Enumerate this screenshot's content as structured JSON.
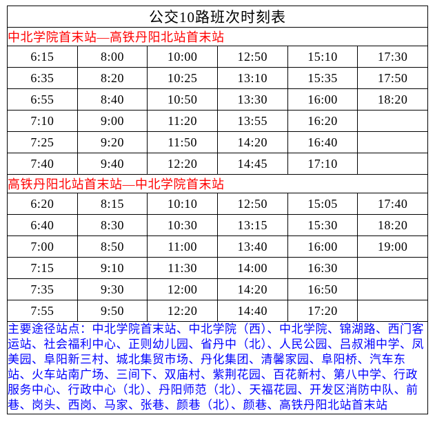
{
  "title": "公交10路班次时刻表",
  "direction1": "中北学院首末站—高铁丹阳北站首末站",
  "times1": [
    [
      "6:15",
      "8:00",
      "10:00",
      "12:50",
      "15:10",
      "17:30"
    ],
    [
      "6:35",
      "8:20",
      "10:25",
      "13:10",
      "15:35",
      "17:50"
    ],
    [
      "6:55",
      "8:40",
      "10:50",
      "13:30",
      "16:00",
      "18:20"
    ],
    [
      "7:10",
      "9:00",
      "11:20",
      "13:55",
      "16:20",
      ""
    ],
    [
      "7:25",
      "9:20",
      "11:50",
      "14:20",
      "16:40",
      ""
    ],
    [
      "7:40",
      "9:40",
      "12:20",
      "14:45",
      "17:10",
      ""
    ]
  ],
  "direction2": "高铁丹阳北站首末站—中北学院首末站",
  "times2": [
    [
      "6:20",
      "8:15",
      "10:10",
      "12:50",
      "15:05",
      "17:40"
    ],
    [
      "6:40",
      "8:30",
      "10:30",
      "13:15",
      "15:30",
      "18:20"
    ],
    [
      "7:00",
      "8:50",
      "11:00",
      "13:40",
      "16:00",
      "19:00"
    ],
    [
      "7:15",
      "9:10",
      "11:30",
      "14:00",
      "16:30",
      ""
    ],
    [
      "7:35",
      "9:30",
      "12:00",
      "14:20",
      "16:50",
      ""
    ],
    [
      "7:55",
      "9:50",
      "12:20",
      "14:40",
      "17:20",
      ""
    ]
  ],
  "stops": "主要途径站点：中北学院首末站、中北学院（西）、中北学院、锦湖路、西门客运站、社会福利中心、正则幼儿园、省丹中（北）、人民公园、吕叔湘中学、凤美园、阜阳新三村、城北集贸市场、丹化集团、清馨家园、阜阳桥、汽车东站、火车站南广场、三间下、双庙村、紫荆花园、百花新村、第八中学、行政服务中心、行政中心（北）、丹阳师范（北）、天福花园、开发区消防中队、前巷、岗头、西岗、马家、张巷、颜巷（北）、颜巷、高铁丹阳北站首末站",
  "colors": {
    "direction": "#ff0000",
    "stops": "#0000ff",
    "border": "#000000",
    "text": "#000000"
  },
  "fontsize": {
    "title": 21,
    "direction": 18,
    "time": 18,
    "stops": 17
  }
}
